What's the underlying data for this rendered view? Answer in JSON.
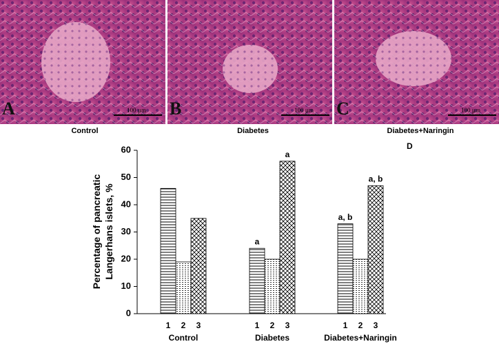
{
  "panels": [
    {
      "letter": "A",
      "scale": "100 µm",
      "caption": "Control"
    },
    {
      "letter": "B",
      "scale": "100 µm",
      "caption": "Diabetes"
    },
    {
      "letter": "C",
      "scale": "100 µm",
      "caption": "Diabetes+Naringin"
    }
  ],
  "chart_data": {
    "type": "bar",
    "panel_letter": "D",
    "ylabel": [
      "Percentage of pancreatic",
      "Langerhans islets, %"
    ],
    "categories": [
      "Control",
      "Diabetes",
      "Diabetes+Naringin"
    ],
    "series": [
      {
        "name": "1",
        "color": "#000000",
        "pattern": "horizontal",
        "values": [
          46,
          24,
          33
        ],
        "annotations": [
          null,
          "a",
          "a, b"
        ]
      },
      {
        "name": "2",
        "color": "#000000",
        "pattern": "dotted",
        "values": [
          19,
          20,
          20
        ],
        "annotations": [
          null,
          null,
          null
        ]
      },
      {
        "name": "3",
        "color": "#000000",
        "pattern": "crosshatch",
        "values": [
          35,
          56,
          47
        ],
        "annotations": [
          null,
          "a",
          "a, b"
        ]
      }
    ],
    "ylim": [
      0,
      60
    ],
    "yticks": [
      0,
      10,
      20,
      30,
      40,
      50,
      60
    ],
    "grid": false
  }
}
